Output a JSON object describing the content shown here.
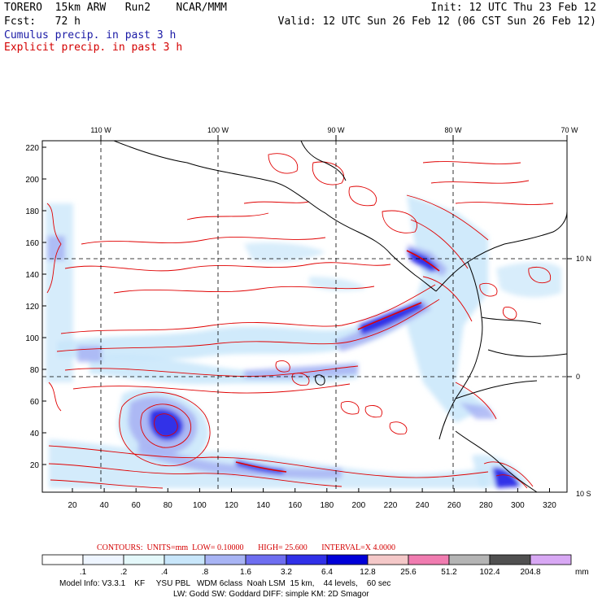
{
  "header": {
    "model": "TORERO",
    "resolution": "15km ARW",
    "run": "Run2",
    "org": "NCAR/MMM",
    "init": "Init: 12 UTC Thu 23 Feb 12",
    "fcst_label": "Fcst:",
    "fcst_value": "72 h",
    "valid": "Valid: 12 UTC Sun 26 Feb 12 (06 CST Sun 26 Feb 12)",
    "legend_cumulus": "Cumulus precip. in past 3 h",
    "legend_explicit": "Explicit precip. in past 3 h"
  },
  "map": {
    "top_lon_labels": [
      "110 W",
      "100 W",
      "90 W",
      "80 W",
      "70 W"
    ],
    "right_lat_labels": [
      "10 N",
      "0",
      "10 S"
    ],
    "y_ticks": [
      "220",
      "200",
      "180",
      "160",
      "140",
      "120",
      "100",
      "80",
      "60",
      "40",
      "20"
    ],
    "x_ticks": [
      "20",
      "40",
      "60",
      "80",
      "100",
      "120",
      "140",
      "160",
      "180",
      "200",
      "220",
      "240",
      "260",
      "280",
      "300",
      "320"
    ],
    "colors": {
      "contour": "#e00000",
      "coast": "#000000",
      "grid": "#000000"
    }
  },
  "contours_line": {
    "label": "CONTOURS:",
    "units": "UNITS=mm",
    "low": "LOW= 0.10000",
    "high": "HIGH= 25.600",
    "interval": "INTERVAL=X 4.0000"
  },
  "colorbar": {
    "labels": [
      ".1",
      ".2",
      ".4",
      ".8",
      "1.6",
      "3.2",
      "6.4",
      "12.8",
      "25.6",
      "51.2",
      "102.4",
      "204.8"
    ],
    "unit": "mm",
    "colors": [
      "#ffffff",
      "#ffffff",
      "#eef5ff",
      "#e4f8fa",
      "#c8e6fa",
      "#a8b4f4",
      "#6e6ef0",
      "#3030e8",
      "#0000d8",
      "#f4c8c8",
      "#f07cb0",
      "#b4b4b4",
      "#505050",
      "#d8a8f4"
    ]
  },
  "footer": {
    "line1": "Model Info: V3.3.1    KF     YSU PBL   WDM 6class  Noah LSM  15 km,    44 levels,    60 sec",
    "line2": "LW: Godd SW: Goddard DIFF: simple KM: 2D Smagor"
  }
}
